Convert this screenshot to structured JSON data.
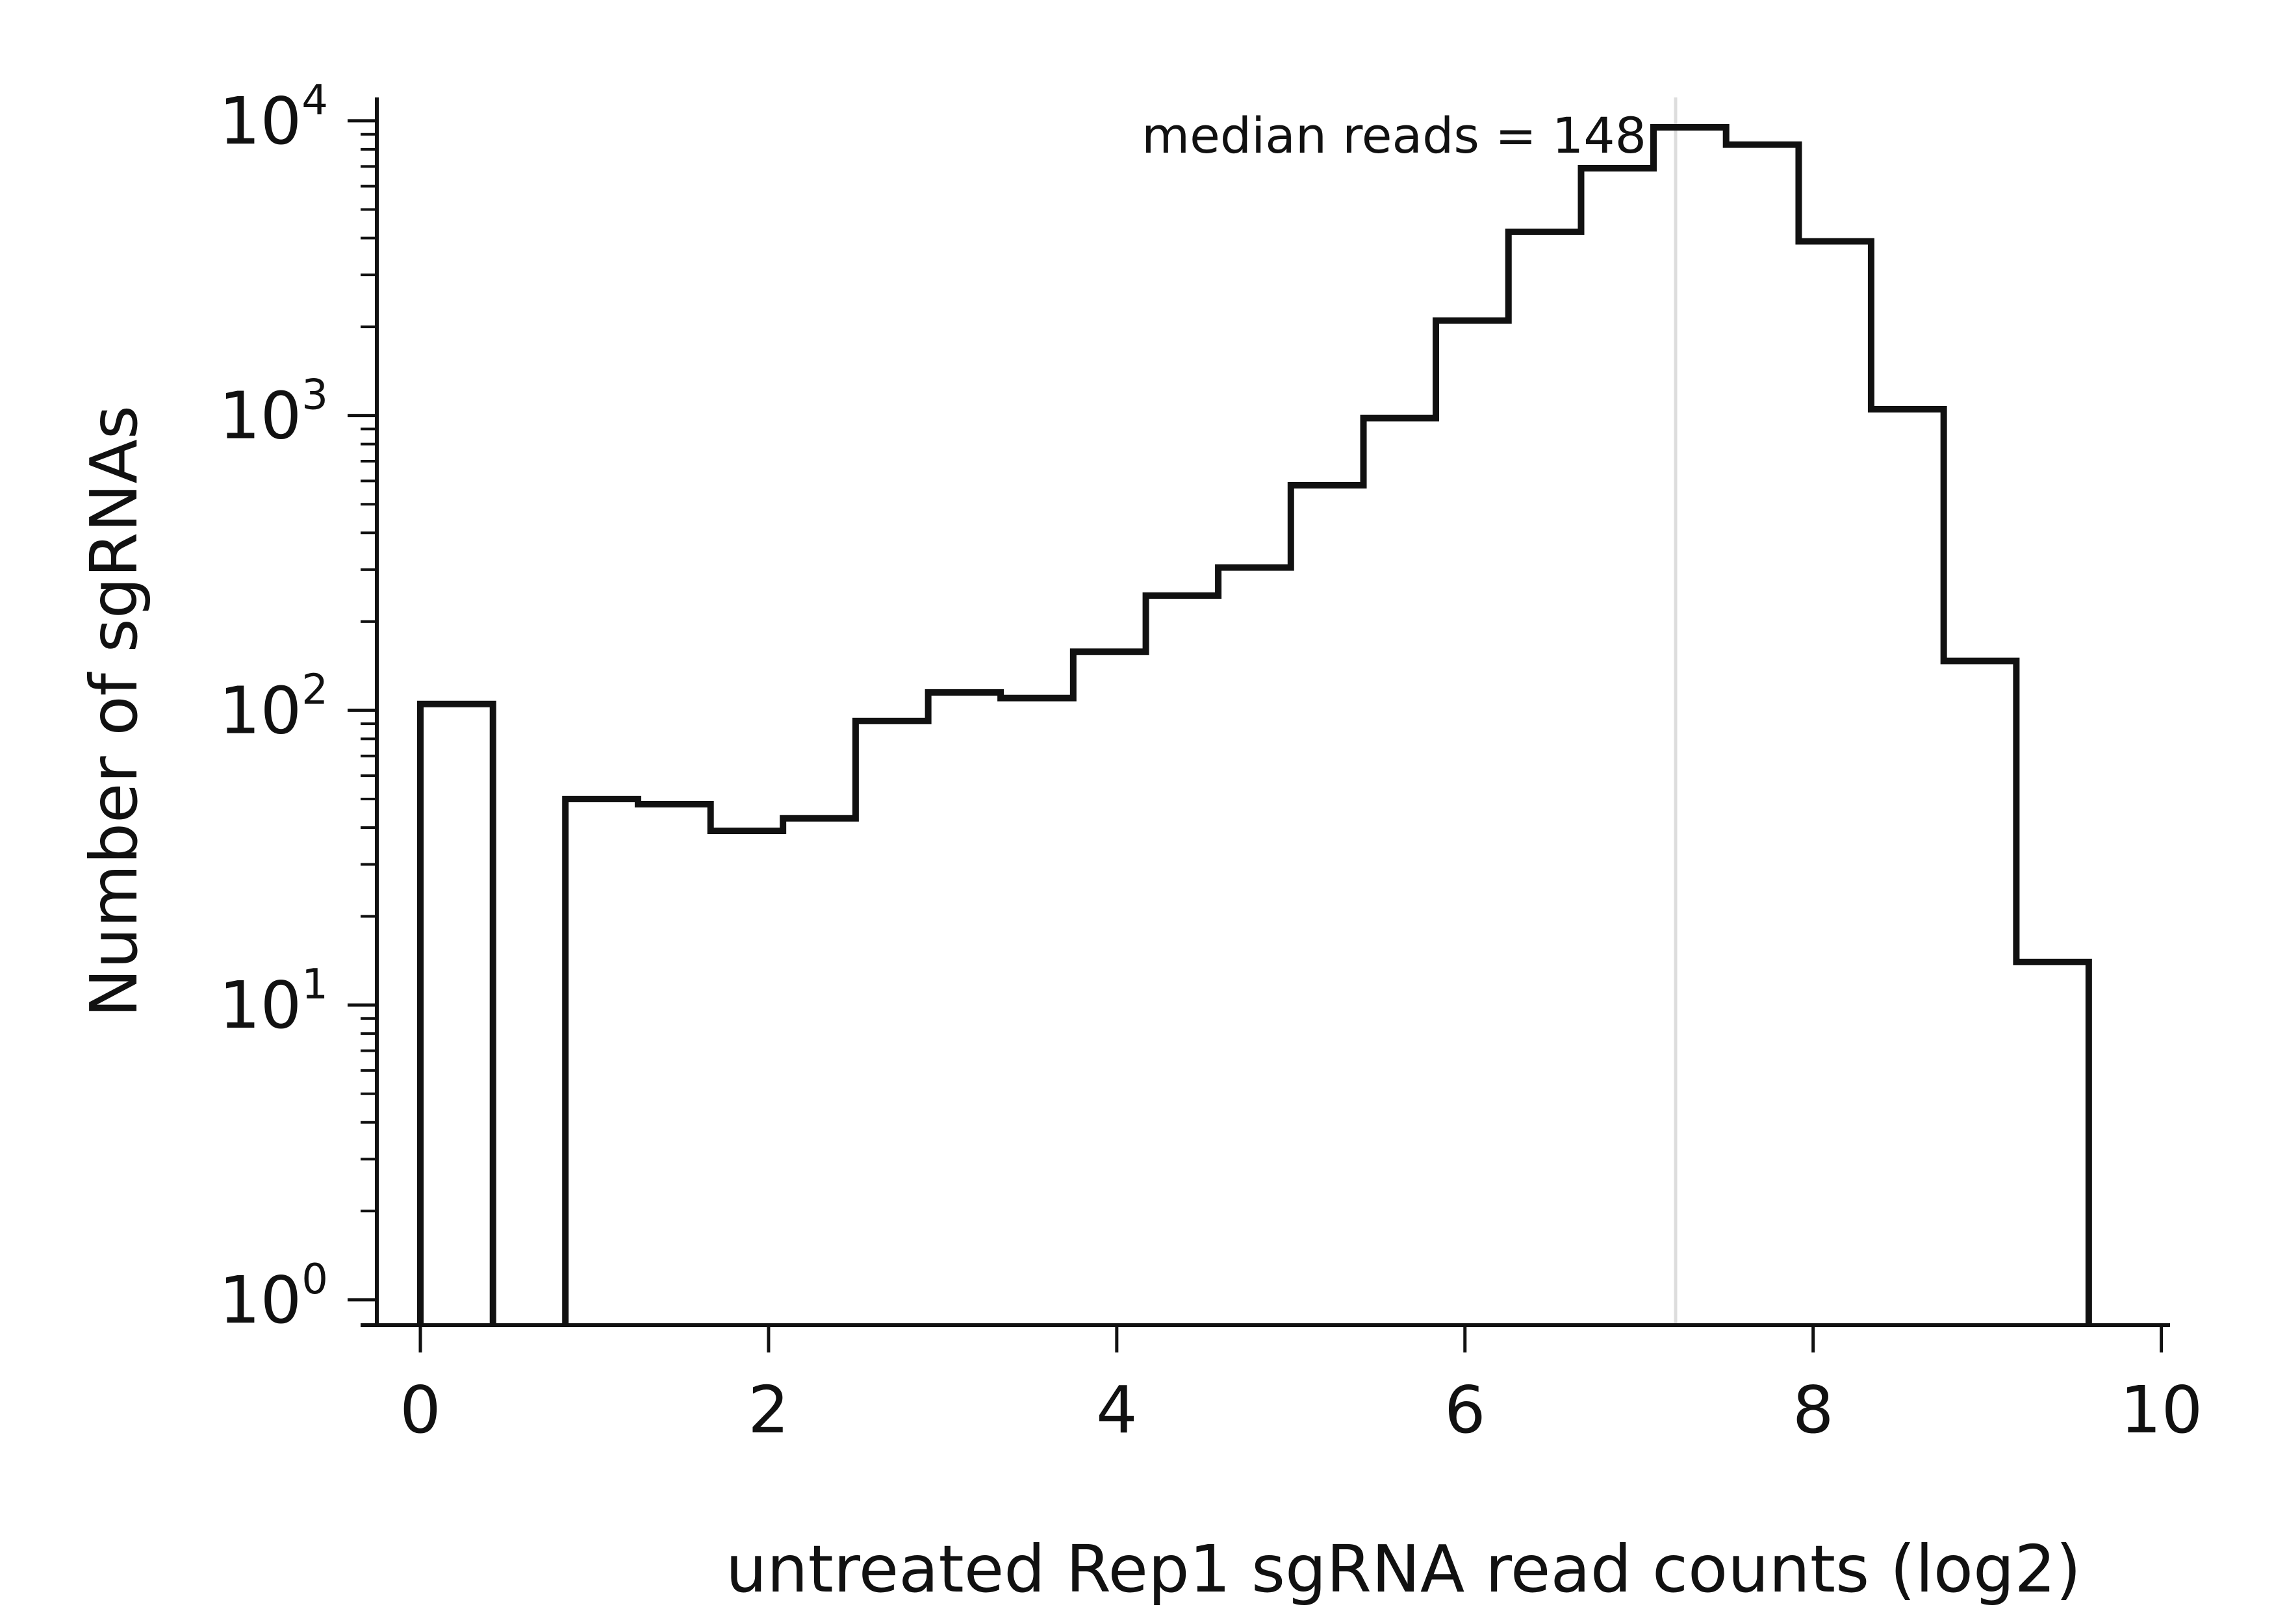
{
  "chart_data": {
    "type": "histogram",
    "title": "",
    "xlabel": "untreated Rep1 sgRNA read counts (log2)",
    "ylabel": "Number of sgRNAs",
    "x_scale": "linear",
    "y_scale": "log10",
    "xlim": [
      -0.25,
      10.05
    ],
    "ylim": [
      0.82,
      12000
    ],
    "x_ticks": [
      0,
      2,
      4,
      6,
      8,
      10
    ],
    "x_tick_labels": [
      "0",
      "2",
      "4",
      "6",
      "8",
      "10"
    ],
    "y_ticks": [
      1,
      10,
      100,
      1000,
      10000
    ],
    "y_tick_labels": [
      {
        "base": "10",
        "exp": "0"
      },
      {
        "base": "10",
        "exp": "1"
      },
      {
        "base": "10",
        "exp": "2"
      },
      {
        "base": "10",
        "exp": "3"
      },
      {
        "base": "10",
        "exp": "4"
      }
    ],
    "grid": false,
    "legend": "none",
    "bin_edges": [
      0,
      0.417,
      0.833,
      1.25,
      1.667,
      2.083,
      2.5,
      2.917,
      3.333,
      3.75,
      4.167,
      4.583,
      5.0,
      5.417,
      5.833,
      6.25,
      6.667,
      7.083,
      7.5,
      7.917,
      8.333,
      8.75,
      9.167,
      9.583
    ],
    "counts": [
      105,
      0,
      50,
      48,
      39,
      43,
      92,
      115,
      110,
      158,
      245,
      305,
      580,
      980,
      2100,
      4200,
      6900,
      9500,
      8300,
      3900,
      1050,
      147,
      14
    ],
    "step_color": "#111111",
    "median_line": {
      "x": 7.21,
      "color": "#dddddd"
    },
    "annotation": "median reads = 148"
  }
}
